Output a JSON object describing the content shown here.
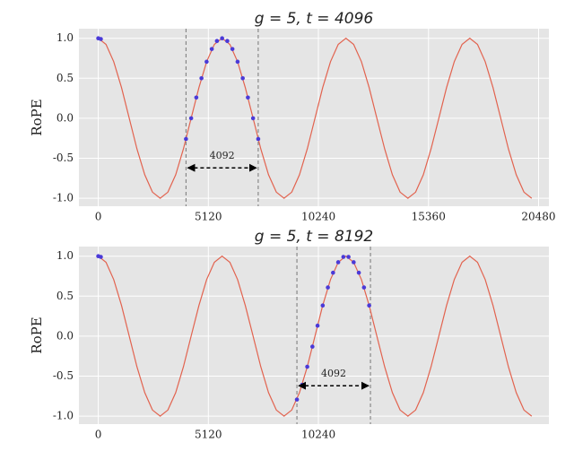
{
  "chart_data": [
    {
      "type": "line",
      "title": "g = 5, t = 4096",
      "ylabel": "RoPE",
      "xlim": [
        -900,
        20960
      ],
      "ylim": [
        -1.1,
        1.12
      ],
      "xticks": [
        0,
        5120,
        10240,
        15360,
        20480
      ],
      "yticks": [
        {
          "value": 1,
          "label": "1.0"
        },
        0.5,
        {
          "value": 0,
          "label": "0.0"
        },
        -0.5,
        {
          "value": -1,
          "label": "-1.0"
        }
      ],
      "grid": true,
      "line": {
        "color": "#e2634f",
        "x": [
          0,
          360,
          720,
          1080,
          1440,
          1800,
          2160,
          2520,
          2880,
          3240,
          3600,
          3960,
          4320,
          4680,
          5040,
          5400,
          5760,
          6120,
          6480,
          6840,
          7200,
          7560,
          7920,
          8280,
          8640,
          9000,
          9360,
          9720,
          10080,
          10440,
          10800,
          11160,
          11520,
          11880,
          12240,
          12600,
          12960,
          13320,
          13680,
          14040,
          14400,
          14760,
          15120,
          15480,
          15840,
          16200,
          16560,
          16920,
          17280,
          17640,
          18000,
          18360,
          18720,
          19080,
          19440,
          19800,
          20160
        ],
        "values": [
          1,
          0.924,
          0.707,
          0.383,
          0,
          -0.383,
          -0.707,
          -0.924,
          -1,
          -0.924,
          -0.707,
          -0.383,
          0,
          0.383,
          0.707,
          0.924,
          1,
          0.924,
          0.707,
          0.383,
          0,
          -0.383,
          -0.707,
          -0.924,
          -1,
          -0.924,
          -0.707,
          -0.383,
          0,
          0.383,
          0.707,
          0.924,
          1,
          0.924,
          0.707,
          0.383,
          0,
          -0.383,
          -0.707,
          -0.924,
          -1,
          -0.924,
          -0.707,
          -0.383,
          0,
          0.383,
          0.707,
          0.924,
          1,
          0.924,
          0.707,
          0.383,
          0,
          -0.383,
          -0.707,
          -0.924,
          -1
        ]
      },
      "points": {
        "color": "#4a3ad8",
        "x": [
          0,
          120,
          4080,
          4320,
          4560,
          4800,
          5040,
          5280,
          5520,
          5760,
          6000,
          6240,
          6480,
          6720,
          6960,
          7200,
          7440
        ],
        "values": [
          1,
          0.991,
          -0.259,
          0,
          0.259,
          0.5,
          0.707,
          0.866,
          0.966,
          1,
          0.966,
          0.866,
          0.707,
          0.5,
          0.259,
          0,
          -0.259
        ]
      },
      "window": [
        4080,
        7440
      ],
      "annotation": "4092"
    },
    {
      "type": "line",
      "title": "g = 5, t = 8192",
      "ylabel": "RoPE",
      "xlim": [
        -900,
        20960
      ],
      "ylim": [
        -1.1,
        1.12
      ],
      "xticks": [
        0,
        5120,
        10240
      ],
      "yticks": [
        {
          "value": 1,
          "label": "1.0"
        },
        0.5,
        {
          "value": 0,
          "label": "0.0"
        },
        -0.5,
        {
          "value": -1,
          "label": "-1.0"
        }
      ],
      "grid": true,
      "line": {
        "color": "#e2634f",
        "x": [
          0,
          360,
          720,
          1080,
          1440,
          1800,
          2160,
          2520,
          2880,
          3240,
          3600,
          3960,
          4320,
          4680,
          5040,
          5400,
          5760,
          6120,
          6480,
          6840,
          7200,
          7560,
          7920,
          8280,
          8640,
          9000,
          9360,
          9720,
          10080,
          10440,
          10800,
          11160,
          11520,
          11880,
          12240,
          12600,
          12960,
          13320,
          13680,
          14040,
          14400,
          14760,
          15120,
          15480,
          15840,
          16200,
          16560,
          16920,
          17280,
          17640,
          18000,
          18360,
          18720,
          19080,
          19440,
          19800,
          20160
        ],
        "values": [
          1,
          0.924,
          0.707,
          0.383,
          0,
          -0.383,
          -0.707,
          -0.924,
          -1,
          -0.924,
          -0.707,
          -0.383,
          0,
          0.383,
          0.707,
          0.924,
          1,
          0.924,
          0.707,
          0.383,
          0,
          -0.383,
          -0.707,
          -0.924,
          -1,
          -0.924,
          -0.707,
          -0.383,
          0,
          0.383,
          0.707,
          0.924,
          1,
          0.924,
          0.707,
          0.383,
          0,
          -0.383,
          -0.707,
          -0.924,
          -1,
          -0.924,
          -0.707,
          -0.383,
          0,
          0.383,
          0.707,
          0.924,
          1,
          0.924,
          0.707,
          0.383,
          0,
          -0.383,
          -0.707,
          -0.924,
          -1
        ]
      },
      "points": {
        "color": "#4a3ad8",
        "x": [
          0,
          120,
          9240,
          9480,
          9720,
          9960,
          10200,
          10440,
          10680,
          10920,
          11160,
          11400,
          11640,
          11880,
          12120,
          12360,
          12600
        ],
        "values": [
          1,
          0.991,
          -0.793,
          -0.609,
          -0.383,
          -0.131,
          0.131,
          0.383,
          0.609,
          0.793,
          0.924,
          0.991,
          0.991,
          0.924,
          0.793,
          0.609,
          0.383
        ]
      },
      "window": [
        9240,
        12660
      ],
      "annotation": "4092"
    }
  ]
}
